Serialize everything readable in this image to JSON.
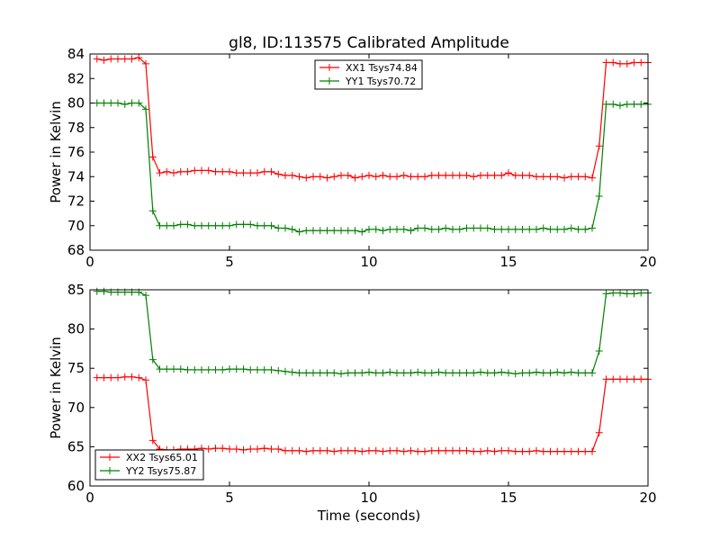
{
  "title": "gl8, ID:113575 Calibrated Amplitude",
  "colors": {
    "red": "#ff0000",
    "green": "#008000",
    "axis": "#000000",
    "background": "#ffffff"
  },
  "chart_data": [
    {
      "type": "line",
      "panel": "top",
      "title": "gl8, ID:113575 Calibrated Amplitude",
      "xlabel": "",
      "ylabel": "Power in Kelvin",
      "xlim": [
        0,
        20
      ],
      "ylim": [
        68,
        84
      ],
      "xticks": [
        "0",
        "5",
        "10",
        "15",
        "20"
      ],
      "yticks": [
        "68",
        "70",
        "72",
        "74",
        "76",
        "78",
        "80",
        "82",
        "84"
      ],
      "grid": false,
      "legend_position": "top-center",
      "series": [
        {
          "name": "XX1 Tsys74.84",
          "color": "#ff0000",
          "x": [
            0.25,
            0.5,
            0.75,
            1.0,
            1.25,
            1.5,
            1.75,
            2.0,
            2.25,
            2.5,
            2.75,
            3.0,
            3.25,
            3.5,
            3.75,
            4.0,
            4.25,
            4.5,
            4.75,
            5.0,
            5.25,
            5.5,
            5.75,
            6.0,
            6.25,
            6.5,
            6.75,
            7.0,
            7.25,
            7.5,
            7.75,
            8.0,
            8.25,
            8.5,
            8.75,
            9.0,
            9.25,
            9.5,
            9.75,
            10.0,
            10.25,
            10.5,
            10.75,
            11.0,
            11.25,
            11.5,
            11.75,
            12.0,
            12.25,
            12.5,
            12.75,
            13.0,
            13.25,
            13.5,
            13.75,
            14.0,
            14.25,
            14.5,
            14.75,
            15.0,
            15.25,
            15.5,
            15.75,
            16.0,
            16.25,
            16.5,
            16.75,
            17.0,
            17.25,
            17.5,
            17.75,
            18.0,
            18.25,
            18.5,
            18.75,
            19.0,
            19.25,
            19.5,
            19.75,
            20.0
          ],
          "y": [
            83.6,
            83.5,
            83.6,
            83.6,
            83.6,
            83.6,
            83.7,
            83.2,
            75.6,
            74.3,
            74.4,
            74.3,
            74.4,
            74.4,
            74.5,
            74.5,
            74.5,
            74.4,
            74.4,
            74.4,
            74.3,
            74.3,
            74.3,
            74.3,
            74.4,
            74.4,
            74.2,
            74.1,
            74.1,
            74.0,
            73.9,
            74.0,
            74.0,
            73.9,
            74.0,
            74.1,
            74.1,
            73.9,
            74.0,
            74.1,
            74.0,
            74.1,
            74.0,
            74.0,
            74.1,
            74.0,
            74.0,
            74.0,
            74.1,
            74.1,
            74.1,
            74.1,
            74.1,
            74.1,
            74.0,
            74.1,
            74.1,
            74.1,
            74.1,
            74.3,
            74.1,
            74.1,
            74.1,
            74.0,
            74.0,
            74.0,
            74.0,
            73.9,
            74.0,
            74.0,
            74.0,
            73.9,
            76.5,
            83.3,
            83.3,
            83.2,
            83.2,
            83.3,
            83.3,
            83.3
          ]
        },
        {
          "name": "YY1 Tsys70.72",
          "color": "#008000",
          "x": [
            0.25,
            0.5,
            0.75,
            1.0,
            1.25,
            1.5,
            1.75,
            2.0,
            2.25,
            2.5,
            2.75,
            3.0,
            3.25,
            3.5,
            3.75,
            4.0,
            4.25,
            4.5,
            4.75,
            5.0,
            5.25,
            5.5,
            5.75,
            6.0,
            6.25,
            6.5,
            6.75,
            7.0,
            7.25,
            7.5,
            7.75,
            8.0,
            8.25,
            8.5,
            8.75,
            9.0,
            9.25,
            9.5,
            9.75,
            10.0,
            10.25,
            10.5,
            10.75,
            11.0,
            11.25,
            11.5,
            11.75,
            12.0,
            12.25,
            12.5,
            12.75,
            13.0,
            13.25,
            13.5,
            13.75,
            14.0,
            14.25,
            14.5,
            14.75,
            15.0,
            15.25,
            15.5,
            15.75,
            16.0,
            16.25,
            16.5,
            16.75,
            17.0,
            17.25,
            17.5,
            17.75,
            18.0,
            18.25,
            18.5,
            18.75,
            19.0,
            19.25,
            19.5,
            19.75,
            20.0
          ],
          "y": [
            80.0,
            80.0,
            80.0,
            80.0,
            79.9,
            80.0,
            80.0,
            79.5,
            71.2,
            70.0,
            70.0,
            70.0,
            70.1,
            70.1,
            70.0,
            70.0,
            70.0,
            70.0,
            70.0,
            70.0,
            70.1,
            70.1,
            70.1,
            70.0,
            70.0,
            70.0,
            69.8,
            69.8,
            69.7,
            69.5,
            69.6,
            69.6,
            69.6,
            69.6,
            69.6,
            69.6,
            69.6,
            69.6,
            69.5,
            69.7,
            69.7,
            69.6,
            69.7,
            69.7,
            69.7,
            69.6,
            69.8,
            69.8,
            69.7,
            69.7,
            69.8,
            69.7,
            69.7,
            69.8,
            69.8,
            69.8,
            69.8,
            69.7,
            69.7,
            69.7,
            69.7,
            69.7,
            69.7,
            69.7,
            69.8,
            69.7,
            69.7,
            69.7,
            69.8,
            69.7,
            69.7,
            69.8,
            72.4,
            79.9,
            79.9,
            79.8,
            79.9,
            79.9,
            79.9,
            79.9
          ]
        }
      ]
    },
    {
      "type": "line",
      "panel": "bottom",
      "title": "",
      "xlabel": "Time (seconds)",
      "ylabel": "Power in Kelvin",
      "xlim": [
        0,
        20
      ],
      "ylim": [
        60,
        85
      ],
      "xticks": [
        "0",
        "5",
        "10",
        "15",
        "20"
      ],
      "yticks": [
        "60",
        "65",
        "70",
        "75",
        "80",
        "85"
      ],
      "grid": false,
      "legend_position": "bottom-left",
      "series": [
        {
          "name": "XX2 Tsys65.01",
          "color": "#ff0000",
          "x": [
            0.25,
            0.5,
            0.75,
            1.0,
            1.25,
            1.5,
            1.75,
            2.0,
            2.25,
            2.5,
            2.75,
            3.0,
            3.25,
            3.5,
            3.75,
            4.0,
            4.25,
            4.5,
            4.75,
            5.0,
            5.25,
            5.5,
            5.75,
            6.0,
            6.25,
            6.5,
            6.75,
            7.0,
            7.25,
            7.5,
            7.75,
            8.0,
            8.25,
            8.5,
            8.75,
            9.0,
            9.25,
            9.5,
            9.75,
            10.0,
            10.25,
            10.5,
            10.75,
            11.0,
            11.25,
            11.5,
            11.75,
            12.0,
            12.25,
            12.5,
            12.75,
            13.0,
            13.25,
            13.5,
            13.75,
            14.0,
            14.25,
            14.5,
            14.75,
            15.0,
            15.25,
            15.5,
            15.75,
            16.0,
            16.25,
            16.5,
            16.75,
            17.0,
            17.25,
            17.5,
            17.75,
            18.0,
            18.25,
            18.5,
            18.75,
            19.0,
            19.25,
            19.5,
            19.75,
            20.0
          ],
          "y": [
            73.8,
            73.8,
            73.8,
            73.8,
            73.9,
            73.9,
            73.8,
            73.5,
            65.8,
            64.7,
            64.6,
            64.6,
            64.7,
            64.7,
            64.7,
            64.8,
            64.7,
            64.8,
            64.8,
            64.7,
            64.7,
            64.6,
            64.7,
            64.7,
            64.8,
            64.7,
            64.7,
            64.5,
            64.5,
            64.5,
            64.4,
            64.5,
            64.5,
            64.5,
            64.4,
            64.5,
            64.5,
            64.5,
            64.4,
            64.5,
            64.5,
            64.4,
            64.5,
            64.5,
            64.4,
            64.5,
            64.4,
            64.4,
            64.5,
            64.5,
            64.5,
            64.5,
            64.5,
            64.5,
            64.4,
            64.4,
            64.5,
            64.4,
            64.5,
            64.5,
            64.4,
            64.4,
            64.4,
            64.5,
            64.4,
            64.4,
            64.4,
            64.4,
            64.4,
            64.4,
            64.4,
            64.4,
            66.8,
            73.6,
            73.6,
            73.6,
            73.6,
            73.6,
            73.6,
            73.6
          ]
        },
        {
          "name": "YY2 Tsys75.87",
          "color": "#008000",
          "x": [
            0.25,
            0.5,
            0.75,
            1.0,
            1.25,
            1.5,
            1.75,
            2.0,
            2.25,
            2.5,
            2.75,
            3.0,
            3.25,
            3.5,
            3.75,
            4.0,
            4.25,
            4.5,
            4.75,
            5.0,
            5.25,
            5.5,
            5.75,
            6.0,
            6.25,
            6.5,
            6.75,
            7.0,
            7.25,
            7.5,
            7.75,
            8.0,
            8.25,
            8.5,
            8.75,
            9.0,
            9.25,
            9.5,
            9.75,
            10.0,
            10.25,
            10.5,
            10.75,
            11.0,
            11.25,
            11.5,
            11.75,
            12.0,
            12.25,
            12.5,
            12.75,
            13.0,
            13.25,
            13.5,
            13.75,
            14.0,
            14.25,
            14.5,
            14.75,
            15.0,
            15.25,
            15.5,
            15.75,
            16.0,
            16.25,
            16.5,
            16.75,
            17.0,
            17.25,
            17.5,
            17.75,
            18.0,
            18.25,
            18.5,
            18.75,
            19.0,
            19.25,
            19.5,
            19.75,
            20.0
          ],
          "y": [
            84.8,
            84.8,
            84.7,
            84.7,
            84.7,
            84.7,
            84.7,
            84.3,
            76.1,
            74.9,
            74.9,
            74.9,
            74.9,
            74.8,
            74.8,
            74.8,
            74.8,
            74.8,
            74.8,
            74.9,
            74.9,
            74.9,
            74.8,
            74.8,
            74.8,
            74.8,
            74.7,
            74.6,
            74.5,
            74.4,
            74.4,
            74.4,
            74.4,
            74.4,
            74.4,
            74.3,
            74.4,
            74.4,
            74.4,
            74.5,
            74.4,
            74.4,
            74.5,
            74.4,
            74.4,
            74.4,
            74.5,
            74.4,
            74.4,
            74.5,
            74.4,
            74.4,
            74.4,
            74.4,
            74.4,
            74.5,
            74.4,
            74.4,
            74.5,
            74.4,
            74.3,
            74.4,
            74.4,
            74.5,
            74.4,
            74.4,
            74.5,
            74.4,
            74.5,
            74.4,
            74.4,
            74.4,
            77.2,
            84.5,
            84.6,
            84.6,
            84.5,
            84.5,
            84.6,
            84.6
          ]
        }
      ]
    }
  ]
}
